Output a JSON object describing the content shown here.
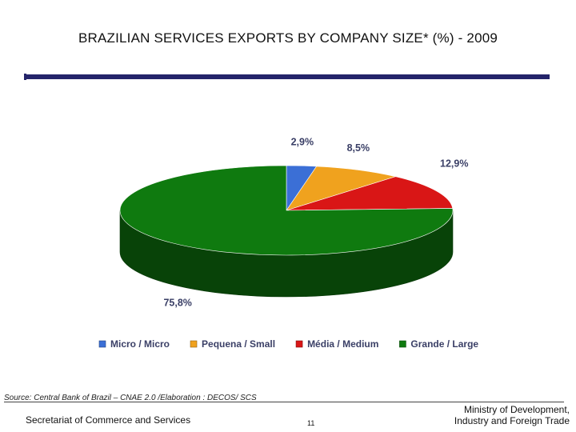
{
  "title": "BRAZILIAN SERVICES EXPORTS BY COMPANY SIZE* (%) - 2009",
  "colors": {
    "title_bar": "#24246a",
    "micro": "#3b6fd6",
    "small": "#f0a21e",
    "medium": "#d91616",
    "large": "#0f7a0f"
  },
  "chart_data": {
    "type": "pie",
    "style": "3d",
    "legend_position": "bottom",
    "slices": [
      {
        "label": "Micro / Micro",
        "value": 2.9,
        "display": "2,9%",
        "color": "#3b6fd6"
      },
      {
        "label": "Pequena / Small",
        "value": 8.5,
        "display": "8,5%",
        "color": "#f0a21e"
      },
      {
        "label": "Média / Medium",
        "value": 12.9,
        "display": "12,9%",
        "color": "#d91616"
      },
      {
        "label": "Grande / Large",
        "value": 75.8,
        "display": "75,8%",
        "color": "#0f7a0f"
      }
    ]
  },
  "source": "Source: Central Bank of Brazil – CNAE 2.0 /Elaboration : DECOS/ SCS",
  "footer": {
    "left": "Secretariat of Commerce and Services",
    "page": "11",
    "right_line1": "Ministry of Development,",
    "right_line2": "Industry and Foreign Trade"
  }
}
